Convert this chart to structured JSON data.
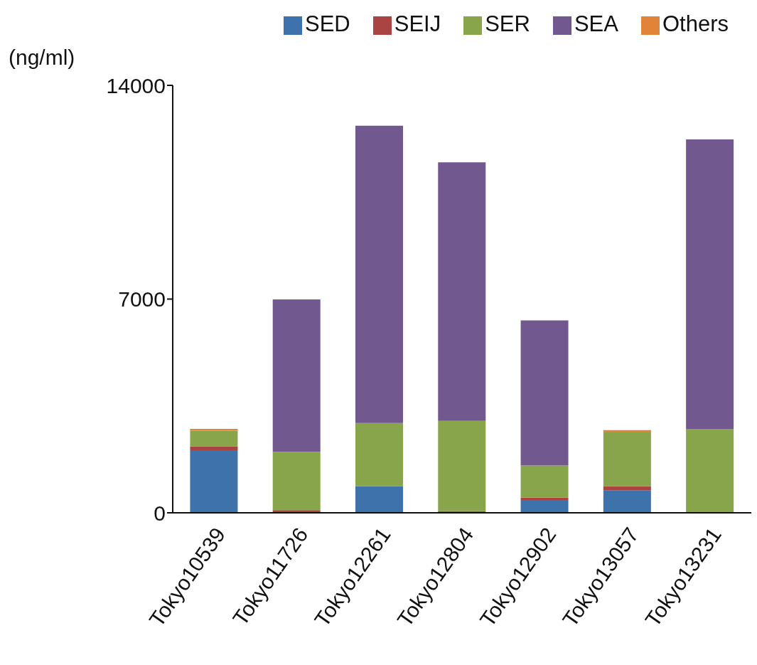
{
  "chart_data": {
    "type": "bar",
    "stacked": true,
    "ylabel": "(ng/ml)",
    "categories": [
      "Tokyo10539",
      "Tokyo11726",
      "Tokyo12261",
      "Tokyo12804",
      "Tokyo12902",
      "Tokyo13057",
      "Tokyo13231"
    ],
    "series": [
      {
        "name": "SED",
        "color": "#3e72aa",
        "values": [
          2050,
          null,
          870,
          null,
          420,
          730,
          null
        ]
      },
      {
        "name": "SEIJ",
        "color": "#a94442",
        "values": [
          130,
          90,
          null,
          50,
          80,
          140,
          null
        ]
      },
      {
        "name": "SER",
        "color": "#89a54b",
        "values": [
          510,
          1910,
          2070,
          2960,
          1050,
          1760,
          2750
        ]
      },
      {
        "name": "SEA",
        "color": "#71598f",
        "values": [
          null,
          4990,
          9740,
          8470,
          4750,
          null,
          9480
        ]
      },
      {
        "name": "Others",
        "color": "#e0843a",
        "values": [
          60,
          null,
          null,
          null,
          null,
          80,
          null
        ]
      }
    ],
    "ylim": [
      0,
      14000
    ],
    "yticks": [
      0,
      7000,
      14000
    ],
    "legend": "top right"
  }
}
